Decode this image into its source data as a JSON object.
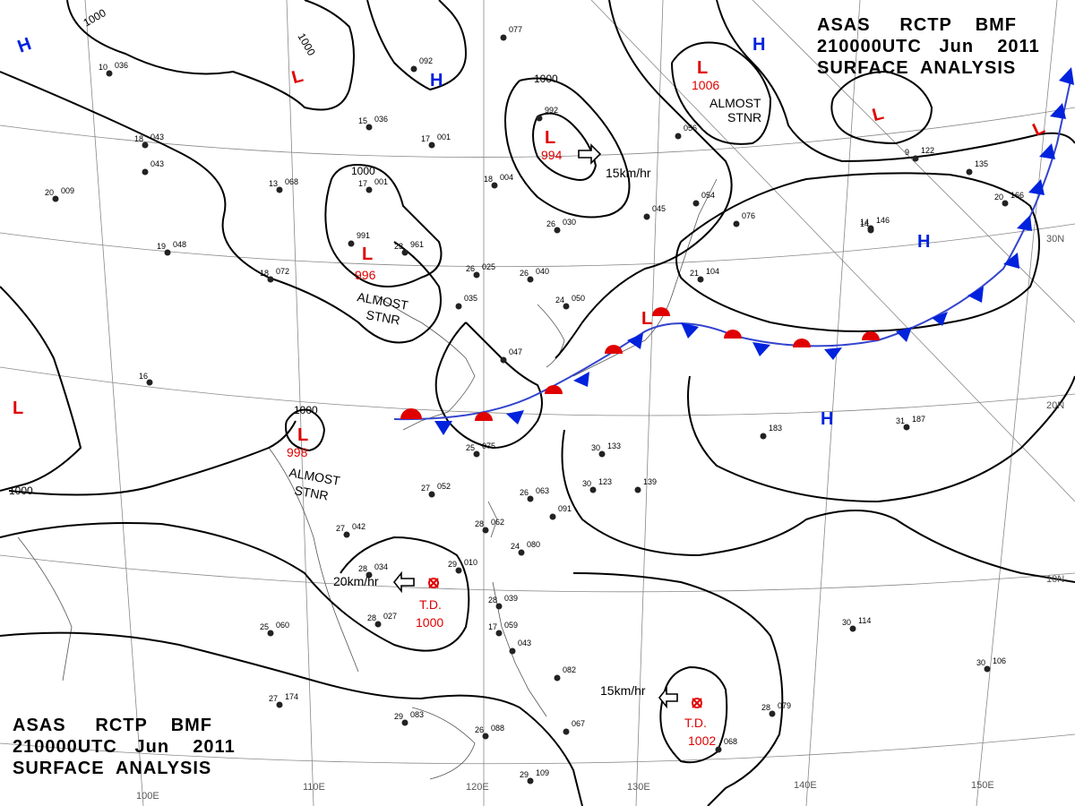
{
  "header": {
    "line1_parts": [
      "ASAS",
      "RCTP",
      "BMF"
    ],
    "line2_parts": [
      "210000UTC",
      "Jun",
      "2011"
    ],
    "line3": "SURFACE  ANALYSIS"
  },
  "colors": {
    "low": "#e00000",
    "high": "#0022dd",
    "isobar": "#000000",
    "grid": "#888888",
    "coast": "#555555"
  },
  "longitude_labels": [
    "100E",
    "110E",
    "120E",
    "130E",
    "140E",
    "150E"
  ],
  "latitude_labels": [
    "30N",
    "20N",
    "10N"
  ],
  "isobar_labels": [
    "1000",
    "1000",
    "1000",
    "1000",
    "1000",
    "1000"
  ],
  "highs": [
    "H",
    "H",
    "H",
    "H",
    "H"
  ],
  "lows": [
    {
      "symbol": "L",
      "pressure": "",
      "note": ""
    },
    {
      "symbol": "L",
      "pressure": "",
      "note": ""
    },
    {
      "symbol": "L",
      "pressure": "1006",
      "note": "ALMOST STNR"
    },
    {
      "symbol": "L",
      "pressure": "994",
      "note": ""
    },
    {
      "symbol": "L",
      "pressure": "996",
      "note": "ALMOST STNR"
    },
    {
      "symbol": "L",
      "pressure": "998",
      "note": "ALMOST STNR"
    },
    {
      "symbol": "L",
      "pressure": "",
      "note": ""
    },
    {
      "symbol": "L",
      "pressure": "",
      "note": ""
    }
  ],
  "almost_stnr": [
    "ALMOST",
    "STNR"
  ],
  "tropical_depressions": [
    {
      "label": "T.D.",
      "pressure": "1000",
      "motion": "20km/hr"
    },
    {
      "label": "T.D.",
      "pressure": "1002",
      "motion": "15km/hr"
    }
  ],
  "motion_994": "15km/hr",
  "stations": [
    {
      "t": "10",
      "p": "036"
    },
    {
      "t": "18",
      "p": "043"
    },
    {
      "t": "",
      "p": "043"
    },
    {
      "t": "20",
      "p": "009"
    },
    {
      "t": "19",
      "p": "048"
    },
    {
      "t": "18",
      "p": "072"
    },
    {
      "t": "13",
      "p": "068"
    },
    {
      "t": "17",
      "p": "001"
    },
    {
      "t": "",
      "p": "991"
    },
    {
      "t": "23",
      "p": "961"
    },
    {
      "t": "15",
      "p": "036"
    },
    {
      "t": "17",
      "p": "001"
    },
    {
      "t": "",
      "p": "092"
    },
    {
      "t": "",
      "p": "077"
    },
    {
      "t": "18",
      "p": "004"
    },
    {
      "t": "26",
      "p": "030"
    },
    {
      "t": "26",
      "p": "025"
    },
    {
      "t": "26",
      "p": "040"
    },
    {
      "t": "",
      "p": "035"
    },
    {
      "t": "24",
      "p": "050"
    },
    {
      "t": "",
      "p": "047"
    },
    {
      "t": "",
      "p": "992"
    },
    {
      "t": "",
      "p": "056"
    },
    {
      "t": "",
      "p": "054"
    },
    {
      "t": "",
      "p": "045"
    },
    {
      "t": "",
      "p": "076"
    },
    {
      "t": "21",
      "p": "104"
    },
    {
      "t": "9",
      "p": "122"
    },
    {
      "t": "",
      "p": "135"
    },
    {
      "t": "20",
      "p": "166"
    },
    {
      "t": "14",
      "p": "146"
    },
    {
      "t": "",
      "p": "183"
    },
    {
      "t": "31",
      "p": "187"
    },
    {
      "t": "30",
      "p": "133"
    },
    {
      "t": "30",
      "p": "123"
    },
    {
      "t": "",
      "p": "139"
    },
    {
      "t": "25",
      "p": "075"
    },
    {
      "t": "27",
      "p": "052"
    },
    {
      "t": "26",
      "p": "063"
    },
    {
      "t": "28",
      "p": "062"
    },
    {
      "t": "",
      "p": "091"
    },
    {
      "t": "24",
      "p": "080"
    },
    {
      "t": "27",
      "p": "042"
    },
    {
      "t": "28",
      "p": "034"
    },
    {
      "t": "29",
      "p": "010"
    },
    {
      "t": "28",
      "p": "027"
    },
    {
      "t": "25",
      "p": "060"
    },
    {
      "t": "28",
      "p": "039"
    },
    {
      "t": "17",
      "p": "059"
    },
    {
      "t": "",
      "p": "043"
    },
    {
      "t": "",
      "p": "082"
    },
    {
      "t": "27",
      "p": "174"
    },
    {
      "t": "29",
      "p": "083"
    },
    {
      "t": "26",
      "p": "088"
    },
    {
      "t": "",
      "p": "067"
    },
    {
      "t": "28",
      "p": "079"
    },
    {
      "t": "",
      "p": "068"
    },
    {
      "t": "29",
      "p": "109"
    },
    {
      "t": "30",
      "p": "114"
    },
    {
      "t": "30",
      "p": "106"
    },
    {
      "t": "14",
      "p": ""
    },
    {
      "t": "16",
      "p": ""
    }
  ]
}
